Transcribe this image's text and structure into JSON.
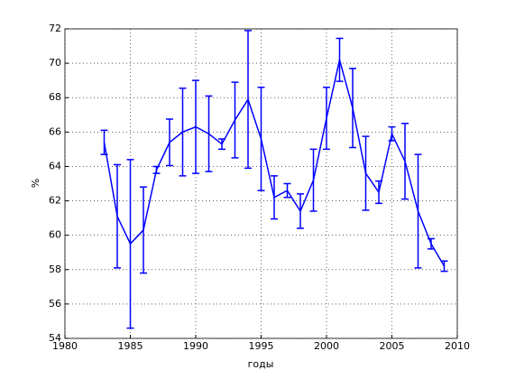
{
  "chart_data": {
    "type": "errorbar",
    "xlabel": "годы",
    "ylabel": "%",
    "x": [
      1983,
      1984,
      1985,
      1986,
      1987,
      1988,
      1989,
      1990,
      1991,
      1992,
      1993,
      1994,
      1995,
      1996,
      1997,
      1998,
      1999,
      2000,
      2001,
      2002,
      2003,
      2004,
      2005,
      2006,
      2007,
      2008,
      2009
    ],
    "values": [
      65.4,
      61.1,
      59.5,
      60.3,
      63.8,
      65.4,
      66.0,
      66.3,
      65.9,
      65.3,
      66.7,
      67.9,
      65.6,
      62.2,
      62.6,
      61.4,
      63.2,
      66.8,
      70.2,
      67.4,
      63.6,
      62.5,
      65.9,
      64.3,
      61.4,
      59.5,
      58.2
    ],
    "errors": [
      0.7,
      3.0,
      4.9,
      2.5,
      0.2,
      1.35,
      2.55,
      2.7,
      2.2,
      0.3,
      2.2,
      4.0,
      3.0,
      1.25,
      0.4,
      1.0,
      1.8,
      1.8,
      1.25,
      2.3,
      2.15,
      0.65,
      0.4,
      2.2,
      3.3,
      0.3,
      0.3
    ],
    "color": "#0000ff",
    "xlim": [
      1980,
      2010
    ],
    "xticks": [
      1980,
      1985,
      1990,
      1995,
      2000,
      2005,
      2010
    ],
    "ylim": [
      54,
      72
    ],
    "yticks": [
      54,
      56,
      58,
      60,
      62,
      64,
      66,
      68,
      70,
      72
    ],
    "grid": true
  }
}
